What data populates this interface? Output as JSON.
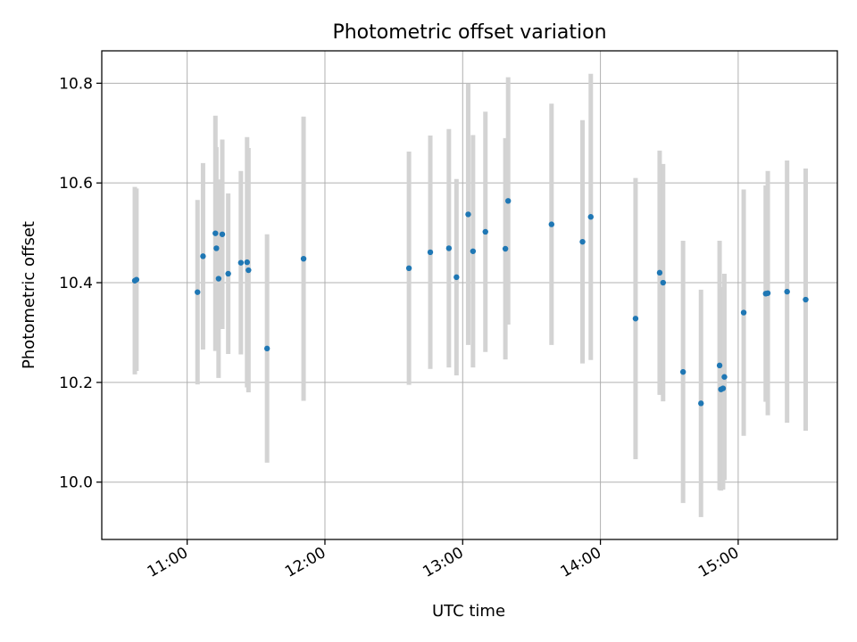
{
  "chart_data": {
    "type": "scatter",
    "title": "Photometric offset variation",
    "xlabel": "UTC time",
    "ylabel": "Photometric offset",
    "x_unit": "hours UTC",
    "xlim": [
      10.38,
      15.72
    ],
    "ylim": [
      9.885,
      10.865
    ],
    "grid": true,
    "x_ticks": [
      {
        "value": 11,
        "label": "11:00"
      },
      {
        "value": 12,
        "label": "12:00"
      },
      {
        "value": 13,
        "label": "13:00"
      },
      {
        "value": 14,
        "label": "14:00"
      },
      {
        "value": 15,
        "label": "15:00"
      }
    ],
    "y_ticks": [
      {
        "value": 10.0,
        "label": "10.0"
      },
      {
        "value": 10.2,
        "label": "10.2"
      },
      {
        "value": 10.4,
        "label": "10.4"
      },
      {
        "value": 10.6,
        "label": "10.6"
      },
      {
        "value": 10.8,
        "label": "10.8"
      }
    ],
    "point_color": "#1f77b4",
    "errorbar_color": "#d3d3d3",
    "points": [
      {
        "x": 10.62,
        "y": 10.404,
        "err": 0.188
      },
      {
        "x": 10.632,
        "y": 10.406,
        "err": 0.183
      },
      {
        "x": 11.075,
        "y": 10.381,
        "err": 0.185
      },
      {
        "x": 11.115,
        "y": 10.453,
        "err": 0.187
      },
      {
        "x": 11.205,
        "y": 10.499,
        "err": 0.236
      },
      {
        "x": 11.212,
        "y": 10.469,
        "err": 0.203
      },
      {
        "x": 11.228,
        "y": 10.408,
        "err": 0.199
      },
      {
        "x": 11.255,
        "y": 10.497,
        "err": 0.19
      },
      {
        "x": 11.298,
        "y": 10.418,
        "err": 0.161
      },
      {
        "x": 11.39,
        "y": 10.44,
        "err": 0.184
      },
      {
        "x": 11.435,
        "y": 10.441,
        "err": 0.251
      },
      {
        "x": 11.445,
        "y": 10.425,
        "err": 0.245
      },
      {
        "x": 11.58,
        "y": 10.268,
        "err": 0.229
      },
      {
        "x": 11.845,
        "y": 10.448,
        "err": 0.285
      },
      {
        "x": 12.61,
        "y": 10.429,
        "err": 0.234
      },
      {
        "x": 12.765,
        "y": 10.461,
        "err": 0.234
      },
      {
        "x": 12.9,
        "y": 10.469,
        "err": 0.239
      },
      {
        "x": 12.955,
        "y": 10.411,
        "err": 0.197
      },
      {
        "x": 13.04,
        "y": 10.537,
        "err": 0.262
      },
      {
        "x": 13.075,
        "y": 10.463,
        "err": 0.233
      },
      {
        "x": 13.165,
        "y": 10.502,
        "err": 0.241
      },
      {
        "x": 13.31,
        "y": 10.468,
        "err": 0.222
      },
      {
        "x": 13.33,
        "y": 10.564,
        "err": 0.248
      },
      {
        "x": 13.645,
        "y": 10.517,
        "err": 0.242
      },
      {
        "x": 13.87,
        "y": 10.482,
        "err": 0.244
      },
      {
        "x": 13.93,
        "y": 10.532,
        "err": 0.287
      },
      {
        "x": 14.255,
        "y": 10.328,
        "err": 0.282
      },
      {
        "x": 14.43,
        "y": 10.42,
        "err": 0.245
      },
      {
        "x": 14.455,
        "y": 10.4,
        "err": 0.238
      },
      {
        "x": 14.6,
        "y": 10.221,
        "err": 0.263
      },
      {
        "x": 14.73,
        "y": 10.158,
        "err": 0.228
      },
      {
        "x": 14.865,
        "y": 10.234,
        "err": 0.25
      },
      {
        "x": 14.875,
        "y": 10.186,
        "err": 0.203
      },
      {
        "x": 14.89,
        "y": 10.188,
        "err": 0.203
      },
      {
        "x": 14.9,
        "y": 10.211,
        "err": 0.207
      },
      {
        "x": 15.04,
        "y": 10.34,
        "err": 0.247
      },
      {
        "x": 15.2,
        "y": 10.378,
        "err": 0.217
      },
      {
        "x": 15.215,
        "y": 10.379,
        "err": 0.245
      },
      {
        "x": 15.355,
        "y": 10.382,
        "err": 0.263
      },
      {
        "x": 15.49,
        "y": 10.366,
        "err": 0.263
      }
    ]
  }
}
